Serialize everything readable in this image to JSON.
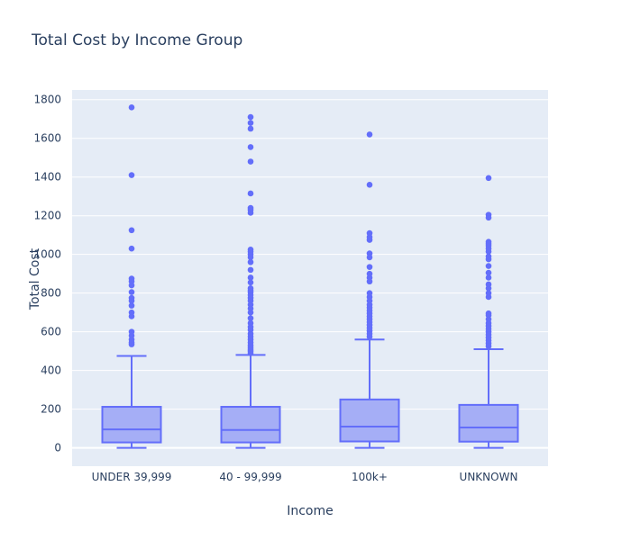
{
  "chart_data": {
    "type": "box",
    "title": "Total Cost by Income Group",
    "xlabel": "Income",
    "ylabel": "Total Cost",
    "ylim": [
      -95,
      1850
    ],
    "yticks": [
      0,
      200,
      400,
      600,
      800,
      1000,
      1200,
      1400,
      1600,
      1800
    ],
    "grid": true,
    "colors": {
      "box_fill": "#a5aef6",
      "box_line": "#636efa",
      "plot_bg": "#e5ecf6",
      "page_bg": "#ffffff",
      "text": "#2a3f5f"
    },
    "categories": [
      "UNDER 39,999",
      "40 - 99,999",
      "100k+",
      "UNKNOWN"
    ],
    "boxes": [
      {
        "category": "UNDER 39,999",
        "min": 0,
        "q1": 28,
        "median": 95,
        "q3": 212,
        "upper_fence": 475,
        "outliers": [
          535,
          545,
          560,
          580,
          600,
          680,
          700,
          735,
          760,
          775,
          805,
          840,
          860,
          875,
          1030,
          1125,
          1410,
          1760
        ]
      },
      {
        "category": "40 - 99,999",
        "min": 0,
        "q1": 28,
        "median": 92,
        "q3": 212,
        "upper_fence": 480,
        "outliers": [
          490,
          500,
          510,
          520,
          530,
          545,
          560,
          575,
          590,
          610,
          625,
          645,
          670,
          700,
          720,
          740,
          760,
          775,
          790,
          805,
          815,
          825,
          855,
          880,
          920,
          960,
          985,
          1000,
          1015,
          1025,
          1215,
          1230,
          1240,
          1315,
          1480,
          1555,
          1650,
          1680,
          1710
        ]
      },
      {
        "category": "100k+",
        "min": 0,
        "q1": 33,
        "median": 110,
        "q3": 250,
        "upper_fence": 560,
        "outliers": [
          575,
          590,
          605,
          620,
          635,
          650,
          665,
          680,
          695,
          710,
          725,
          740,
          760,
          780,
          800,
          860,
          880,
          900,
          935,
          985,
          1005,
          1075,
          1090,
          1110,
          1360,
          1620
        ]
      },
      {
        "category": "UNKNOWN",
        "min": 0,
        "q1": 32,
        "median": 105,
        "q3": 222,
        "upper_fence": 510,
        "outliers": [
          525,
          540,
          555,
          570,
          585,
          600,
          615,
          630,
          645,
          665,
          685,
          695,
          780,
          800,
          825,
          845,
          880,
          905,
          940,
          975,
          990,
          1015,
          1030,
          1045,
          1055,
          1065,
          1190,
          1205,
          1395
        ]
      }
    ]
  }
}
